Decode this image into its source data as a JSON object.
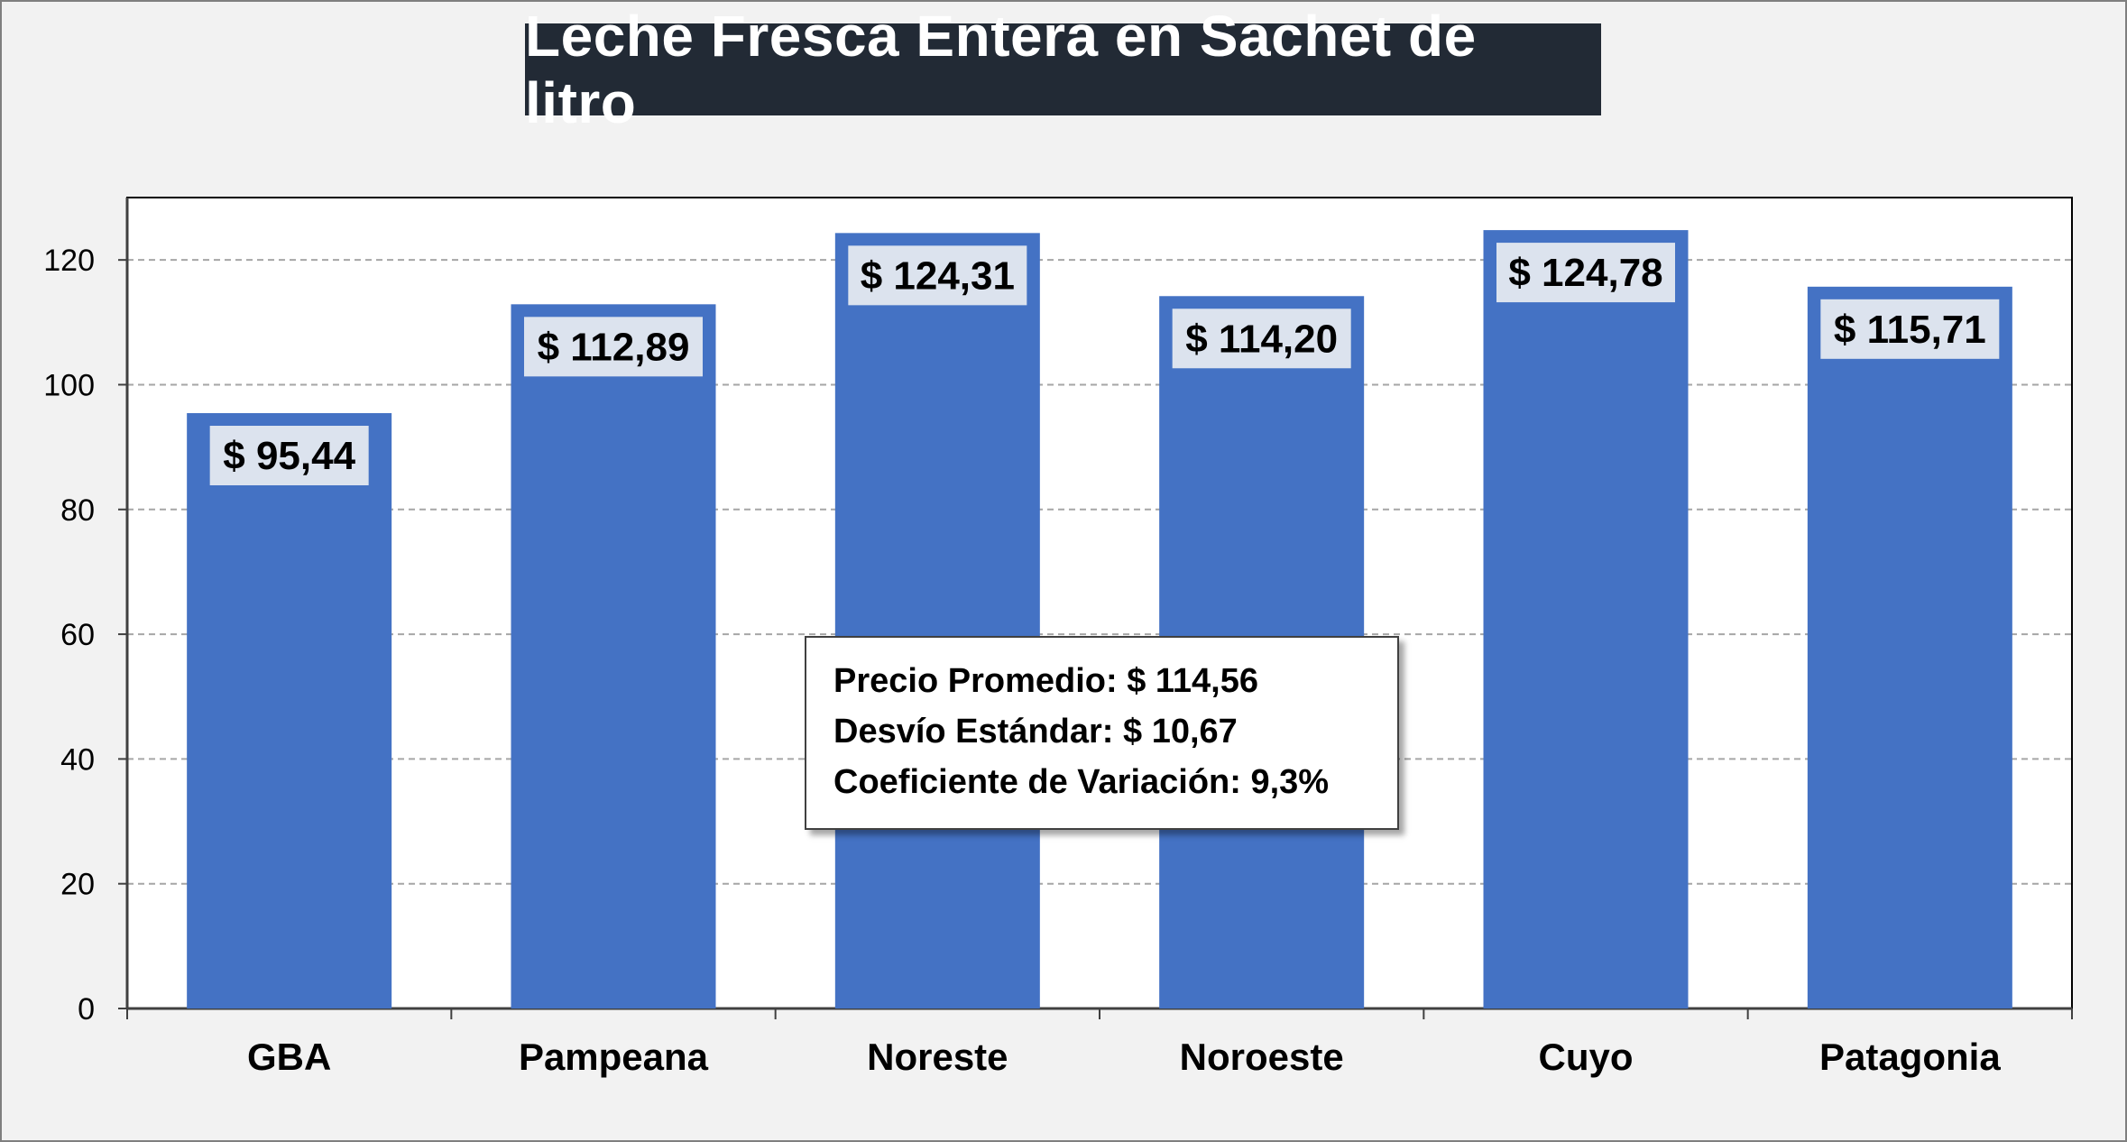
{
  "title": "Leche Fresca Entera en Sachet de litro",
  "colors": {
    "bar": "#4472c4",
    "label_bg": "#dce3ee",
    "title_bg": "#222a35",
    "page_bg": "#f2f2f2",
    "grid": "#a6a6a6"
  },
  "stats": {
    "line1": "Precio Promedio: $ 114,56",
    "line2": "Desvío Estándar: $ 10,67",
    "line3": "Coeficiente de Variación: 9,3%"
  },
  "chart_data": {
    "type": "bar",
    "title": "Leche Fresca Entera en Sachet de litro",
    "xlabel": "",
    "ylabel": "",
    "categories": [
      "GBA",
      "Pampeana",
      "Noreste",
      "Noroeste",
      "Cuyo",
      "Patagonia"
    ],
    "values": [
      95.44,
      112.89,
      124.31,
      114.2,
      124.78,
      115.71
    ],
    "data_labels": [
      "$ 95,44",
      "$ 112,89",
      "$ 124,31",
      "$ 114,20",
      "$ 124,78",
      "$ 115,71"
    ],
    "ylim": [
      0,
      130
    ],
    "yticks": [
      0,
      20,
      40,
      60,
      80,
      100,
      120
    ],
    "grid": true,
    "legend": "none"
  }
}
